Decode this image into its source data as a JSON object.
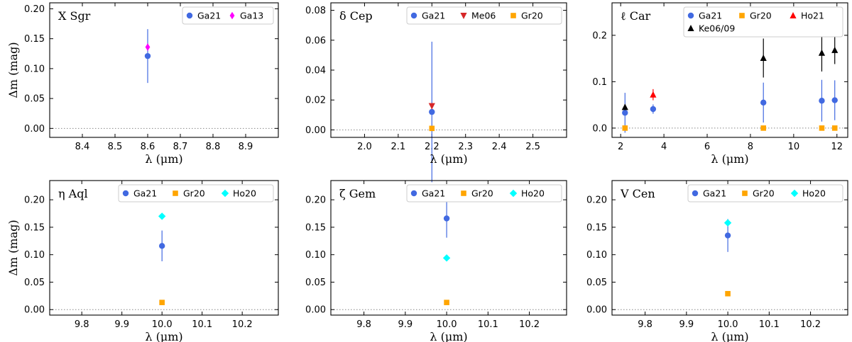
{
  "colors": {
    "Ga21": "#4169e1",
    "Ga13": "#ff00ff",
    "Me06": "#d62728",
    "Gr20": "#ffa500",
    "Ho21": "#ff0000",
    "Ke06/09": "#000000",
    "Ho20": "#00ffff",
    "zero_line": "#888888"
  },
  "chart_data": [
    {
      "type": "scatter",
      "title": "X Sgr",
      "xlabel": "λ (μm)",
      "ylabel": "Δm (mag)",
      "xlim": [
        8.3,
        9.0
      ],
      "ylim": [
        -0.015,
        0.21
      ],
      "xticks": [
        8.4,
        8.5,
        8.6,
        8.7,
        8.8,
        8.9
      ],
      "xtick_labels": [
        "8.4",
        "8.5",
        "8.6",
        "8.7",
        "8.8",
        "8.9"
      ],
      "yticks": [
        0.0,
        0.05,
        0.1,
        0.15,
        0.2
      ],
      "ytick_labels": [
        "0.00",
        "0.05",
        "0.10",
        "0.15",
        "0.20"
      ],
      "legend": {
        "position": "top-right",
        "ncol": 2
      },
      "series": [
        {
          "name": "Ga21",
          "marker": "circle",
          "points": [
            {
              "x": 8.6,
              "y": 0.121,
              "err": 0.045
            }
          ]
        },
        {
          "name": "Ga13",
          "marker": "thin-diamond",
          "points": [
            {
              "x": 8.6,
              "y": 0.136,
              "err": 0.006
            }
          ]
        }
      ]
    },
    {
      "type": "scatter",
      "title": "δ Cep",
      "xlabel": "λ (μm)",
      "ylabel": "",
      "xlim": [
        1.9,
        2.6
      ],
      "ylim": [
        -0.005,
        0.085
      ],
      "xticks": [
        2.0,
        2.1,
        2.2,
        2.3,
        2.4,
        2.5
      ],
      "xtick_labels": [
        "2.0",
        "2.1",
        "2.2",
        "2.3",
        "2.4",
        "2.5"
      ],
      "yticks": [
        0.0,
        0.02,
        0.04,
        0.06,
        0.08
      ],
      "ytick_labels": [
        "0.00",
        "0.02",
        "0.04",
        "0.06",
        "0.08"
      ],
      "legend": {
        "position": "top-right",
        "ncol": 3
      },
      "series": [
        {
          "name": "Ga21",
          "marker": "circle",
          "points": [
            {
              "x": 2.2,
              "y": 0.012,
              "err": 0.047
            }
          ]
        },
        {
          "name": "Me06",
          "marker": "triangle-down",
          "points": [
            {
              "x": 2.2,
              "y": 0.016,
              "err": 0.002
            }
          ]
        },
        {
          "name": "Gr20",
          "marker": "square",
          "points": [
            {
              "x": 2.2,
              "y": 0.001,
              "err": 0
            }
          ]
        }
      ]
    },
    {
      "type": "scatter",
      "title": "ℓ Car",
      "xlabel": "λ (μm)",
      "ylabel": "",
      "xlim": [
        1.6,
        12.5
      ],
      "ylim": [
        -0.02,
        0.27
      ],
      "xticks": [
        2,
        4,
        6,
        8,
        10,
        12
      ],
      "xtick_labels": [
        "2",
        "4",
        "6",
        "8",
        "10",
        "12"
      ],
      "yticks": [
        0.0,
        0.1,
        0.2
      ],
      "ytick_labels": [
        "0.0",
        "0.1",
        "0.2"
      ],
      "legend": {
        "position": "top-right",
        "ncol": 3
      },
      "series": [
        {
          "name": "Ga21",
          "marker": "circle",
          "points": [
            {
              "x": 2.2,
              "y": 0.033,
              "err": 0.043
            },
            {
              "x": 3.5,
              "y": 0.041,
              "err": 0.01
            },
            {
              "x": 8.6,
              "y": 0.055,
              "err": 0.043
            },
            {
              "x": 11.3,
              "y": 0.059,
              "err": 0.045
            },
            {
              "x": 11.9,
              "y": 0.06,
              "err": 0.043
            }
          ]
        },
        {
          "name": "Gr20",
          "marker": "square",
          "points": [
            {
              "x": 2.2,
              "y": 0.0,
              "err": 0
            },
            {
              "x": 8.6,
              "y": 0.0,
              "err": 0
            },
            {
              "x": 11.3,
              "y": 0.0,
              "err": 0
            },
            {
              "x": 11.9,
              "y": 0.0,
              "err": 0
            }
          ]
        },
        {
          "name": "Ho21",
          "marker": "triangle-up",
          "points": [
            {
              "x": 3.5,
              "y": 0.072,
              "err": 0.012
            }
          ]
        },
        {
          "name": "Ke06/09",
          "marker": "triangle-up",
          "points": [
            {
              "x": 2.2,
              "y": 0.045,
              "err": 0.006
            },
            {
              "x": 8.6,
              "y": 0.151,
              "err": 0.042
            },
            {
              "x": 11.3,
              "y": 0.162,
              "err": 0.04
            },
            {
              "x": 11.9,
              "y": 0.168,
              "err": 0.03
            }
          ]
        }
      ]
    },
    {
      "type": "scatter",
      "title": "η Aql",
      "xlabel": "λ (μm)",
      "ylabel": "Δm (mag)",
      "xlim": [
        9.72,
        10.29
      ],
      "ylim": [
        -0.01,
        0.235
      ],
      "xticks": [
        9.8,
        9.9,
        10.0,
        10.1,
        10.2
      ],
      "xtick_labels": [
        "9.8",
        "9.9",
        "10.0",
        "10.1",
        "10.2"
      ],
      "yticks": [
        0.0,
        0.05,
        0.1,
        0.15,
        0.2
      ],
      "ytick_labels": [
        "0.00",
        "0.05",
        "0.10",
        "0.15",
        "0.20"
      ],
      "legend": {
        "position": "top-right",
        "ncol": 3
      },
      "series": [
        {
          "name": "Ga21",
          "marker": "circle",
          "points": [
            {
              "x": 10.0,
              "y": 0.116,
              "err": 0.028
            }
          ]
        },
        {
          "name": "Gr20",
          "marker": "square",
          "points": [
            {
              "x": 10.0,
              "y": 0.013,
              "err": 0
            }
          ]
        },
        {
          "name": "Ho20",
          "marker": "diamond",
          "points": [
            {
              "x": 10.0,
              "y": 0.17,
              "err": 0
            }
          ]
        }
      ]
    },
    {
      "type": "scatter",
      "title": "ζ Gem",
      "xlabel": "λ (μm)",
      "ylabel": "",
      "xlim": [
        9.72,
        10.29
      ],
      "ylim": [
        -0.01,
        0.235
      ],
      "xticks": [
        9.8,
        9.9,
        10.0,
        10.1,
        10.2
      ],
      "xtick_labels": [
        "9.8",
        "9.9",
        "10.0",
        "10.1",
        "10.2"
      ],
      "yticks": [
        0.0,
        0.05,
        0.1,
        0.15,
        0.2
      ],
      "ytick_labels": [
        "0.00",
        "0.05",
        "0.10",
        "0.15",
        "0.20"
      ],
      "legend": {
        "position": "top-right",
        "ncol": 3
      },
      "series": [
        {
          "name": "Ga21",
          "marker": "circle",
          "points": [
            {
              "x": 10.0,
              "y": 0.166,
              "err": 0.035
            }
          ]
        },
        {
          "name": "Gr20",
          "marker": "square",
          "points": [
            {
              "x": 10.0,
              "y": 0.013,
              "err": 0
            }
          ]
        },
        {
          "name": "Ho20",
          "marker": "diamond",
          "points": [
            {
              "x": 10.0,
              "y": 0.094,
              "err": 0
            }
          ]
        }
      ]
    },
    {
      "type": "scatter",
      "title": "V Cen",
      "xlabel": "λ (μm)",
      "ylabel": "",
      "xlim": [
        9.72,
        10.29
      ],
      "ylim": [
        -0.01,
        0.235
      ],
      "xticks": [
        9.8,
        9.9,
        10.0,
        10.1,
        10.2
      ],
      "xtick_labels": [
        "9.8",
        "9.9",
        "10.0",
        "10.1",
        "10.2"
      ],
      "yticks": [
        0.0,
        0.05,
        0.1,
        0.15,
        0.2
      ],
      "ytick_labels": [
        "0.00",
        "0.05",
        "0.10",
        "0.15",
        "0.20"
      ],
      "legend": {
        "position": "top-right",
        "ncol": 3
      },
      "series": [
        {
          "name": "Ga21",
          "marker": "circle",
          "points": [
            {
              "x": 10.0,
              "y": 0.135,
              "err": 0.03
            }
          ]
        },
        {
          "name": "Gr20",
          "marker": "square",
          "points": [
            {
              "x": 10.0,
              "y": 0.029,
              "err": 0
            }
          ]
        },
        {
          "name": "Ho20",
          "marker": "diamond",
          "points": [
            {
              "x": 10.0,
              "y": 0.158,
              "err": 0
            }
          ]
        }
      ]
    }
  ]
}
